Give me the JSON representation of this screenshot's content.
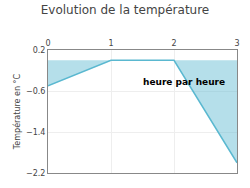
{
  "chart_data": {
    "type": "area",
    "title": "Evolution de la température",
    "xlabel": "heure par heure",
    "ylabel": "Température en °C",
    "x": [
      0,
      1,
      2,
      3
    ],
    "values": [
      -0.5,
      0.0,
      0.0,
      -2.0
    ],
    "color": "#5ab8d0",
    "xlim": [
      0,
      3
    ],
    "xticks": [
      0,
      1,
      2,
      3
    ],
    "ylim": [
      -2.2,
      0.2
    ],
    "yticks": [
      0.2,
      -0.6,
      -1.4,
      -2.2
    ],
    "grid": true
  }
}
